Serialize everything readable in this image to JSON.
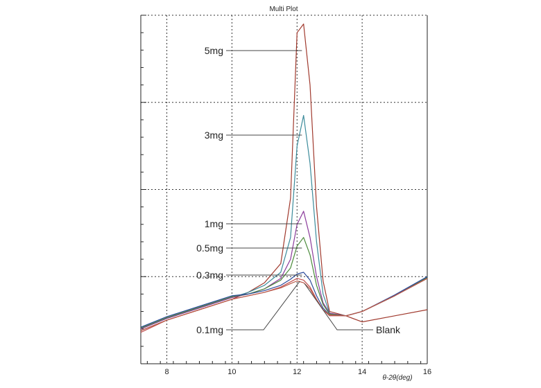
{
  "chart_data": {
    "type": "line",
    "title": "Multi Plot",
    "xlabel": "θ-2θ(deg)",
    "ylabel": "",
    "xlim": [
      7.2,
      16
    ],
    "ylim": [
      0,
      4
    ],
    "x_ticks": [
      8,
      10,
      12,
      14,
      16
    ],
    "y_ticks": [
      1,
      2,
      3,
      4
    ],
    "grid": true,
    "series": [
      {
        "name": "5mg",
        "color": "#a0392d",
        "peak": 3.9,
        "x": [
          7.2,
          8,
          9,
          10,
          10.5,
          11,
          11.5,
          11.8,
          12,
          12.2,
          12.4,
          12.6,
          12.8,
          13,
          13.5,
          14,
          15,
          16
        ],
        "y": [
          0.38,
          0.5,
          0.62,
          0.74,
          0.82,
          0.93,
          1.15,
          1.9,
          3.8,
          3.9,
          3.2,
          1.8,
          0.95,
          0.6,
          0.55,
          0.48,
          0.55,
          0.62
        ]
      },
      {
        "name": "3mg",
        "color": "#3a8a9a",
        "peak": 2.85,
        "x": [
          7.2,
          8,
          9,
          10,
          10.5,
          11,
          11.5,
          11.8,
          12,
          12.2,
          12.4,
          12.6,
          12.8,
          13,
          13.5,
          14,
          15,
          16
        ],
        "y": [
          0.4,
          0.52,
          0.64,
          0.76,
          0.82,
          0.9,
          1.05,
          1.45,
          2.5,
          2.85,
          2.3,
          1.4,
          0.8,
          0.58,
          0.55,
          0.6,
          0.78,
          0.98
        ]
      },
      {
        "name": "1mg",
        "color": "#8a3a9a",
        "peak": 1.75,
        "x": [
          7.2,
          8,
          9,
          10,
          10.5,
          11,
          11.5,
          11.8,
          12,
          12.2,
          12.4,
          12.6,
          12.8,
          13,
          13.5,
          14,
          15,
          16
        ],
        "y": [
          0.4,
          0.52,
          0.64,
          0.76,
          0.8,
          0.86,
          0.98,
          1.2,
          1.6,
          1.75,
          1.45,
          1.0,
          0.7,
          0.58,
          0.55,
          0.6,
          0.78,
          0.98
        ]
      },
      {
        "name": "0.5mg",
        "color": "#4a8a3a",
        "peak": 1.45,
        "x": [
          7.2,
          8,
          9,
          10,
          10.5,
          11,
          11.5,
          11.8,
          12,
          12.2,
          12.4,
          12.6,
          12.8,
          13,
          13.5,
          14,
          15,
          16
        ],
        "y": [
          0.41,
          0.53,
          0.65,
          0.77,
          0.8,
          0.86,
          0.96,
          1.1,
          1.35,
          1.45,
          1.25,
          0.9,
          0.68,
          0.57,
          0.55,
          0.6,
          0.78,
          0.99
        ]
      },
      {
        "name": "0.3mg",
        "color": "#2a4a9a",
        "peak": 1.05,
        "x": [
          7.2,
          8,
          9,
          10,
          10.5,
          11,
          11.5,
          11.8,
          12,
          12.2,
          12.4,
          12.6,
          12.8,
          13,
          13.5,
          14,
          15,
          16
        ],
        "y": [
          0.42,
          0.54,
          0.66,
          0.78,
          0.8,
          0.84,
          0.9,
          0.97,
          1.03,
          1.05,
          0.96,
          0.78,
          0.64,
          0.56,
          0.55,
          0.6,
          0.79,
          1.0
        ]
      },
      {
        "name": "0.1mg",
        "color": "#c05050",
        "peak": 0.98,
        "x": [
          7.2,
          8,
          9,
          10,
          10.5,
          11,
          11.5,
          11.8,
          12,
          12.2,
          12.4,
          12.6,
          12.8,
          13,
          13.5,
          14,
          15,
          16
        ],
        "y": [
          0.36,
          0.5,
          0.62,
          0.74,
          0.78,
          0.82,
          0.88,
          0.94,
          0.98,
          0.96,
          0.88,
          0.74,
          0.62,
          0.55,
          0.55,
          0.6,
          0.78,
          0.98
        ]
      },
      {
        "name": "Blank",
        "color": "#b85a4a",
        "peak": 0.95,
        "x": [
          7.2,
          8,
          9,
          10,
          10.5,
          11,
          11.5,
          11.8,
          12,
          12.2,
          12.4,
          12.6,
          12.8,
          13,
          13.5,
          14,
          15,
          16
        ],
        "y": [
          0.38,
          0.5,
          0.62,
          0.74,
          0.78,
          0.82,
          0.87,
          0.92,
          0.95,
          0.93,
          0.86,
          0.73,
          0.62,
          0.56,
          0.55,
          0.6,
          0.78,
          0.98
        ]
      }
    ],
    "annotations": [
      {
        "text": "5mg",
        "target": "5mg"
      },
      {
        "text": "3mg",
        "target": "3mg"
      },
      {
        "text": "1mg",
        "target": "1mg"
      },
      {
        "text": "0.5mg",
        "target": "0.5mg"
      },
      {
        "text": "0.3mg",
        "target": "0.3mg"
      },
      {
        "text": "0.1mg",
        "target": "0.1mg"
      },
      {
        "text": "Blank",
        "target": "Blank"
      }
    ]
  }
}
